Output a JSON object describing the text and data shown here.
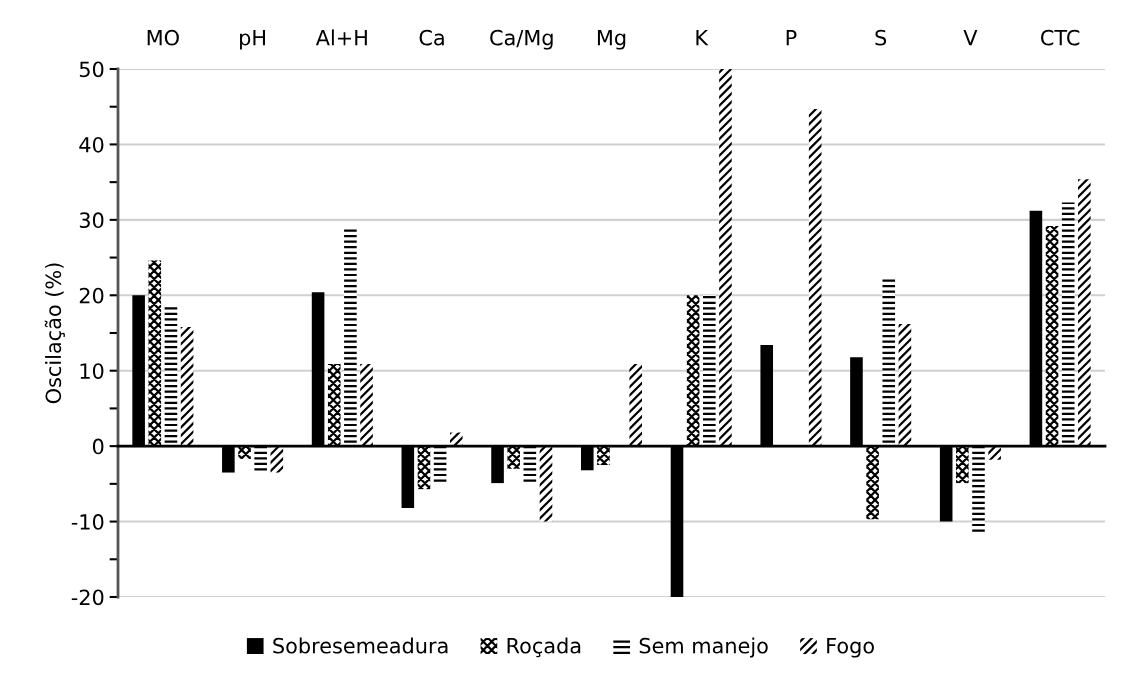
{
  "chart_data": {
    "type": "bar",
    "ylabel": "Oscilação (%)",
    "categories": [
      "MO",
      "pH",
      "Al+H",
      "Ca",
      "Ca/Mg",
      "Mg",
      "K",
      "P",
      "S",
      "V",
      "CTC"
    ],
    "series": [
      {
        "name": "Sobresemeadura",
        "color": "#000000",
        "values": [
          20,
          -3.5,
          20.4,
          -8.2,
          -4.9,
          -3.2,
          -20,
          13.4,
          11.8,
          -10,
          31.2
        ]
      },
      {
        "name": "Roçada",
        "color": "#000000",
        "values": [
          24.6,
          -1.7,
          10.9,
          -5.7,
          -3.0,
          -2.5,
          20,
          null,
          -9.7,
          -4.9,
          29.2
        ]
      },
      {
        "name": "Sem manejo",
        "color": "#000000",
        "values": [
          18.6,
          -3.5,
          29.2,
          -4.8,
          -4.8,
          null,
          20,
          null,
          22.4,
          -11.4,
          32.3
        ]
      },
      {
        "name": "Fogo",
        "color": "#000000",
        "values": [
          15.8,
          -3.5,
          10.9,
          1.8,
          -10,
          10.9,
          50,
          44.7,
          16.2,
          -1.8,
          35.4
        ]
      }
    ],
    "ylim": [
      -20,
      50
    ],
    "yticks": [
      -20,
      -10,
      0,
      10,
      20,
      30,
      40,
      50
    ],
    "grid": "y",
    "legend": "bottom"
  }
}
